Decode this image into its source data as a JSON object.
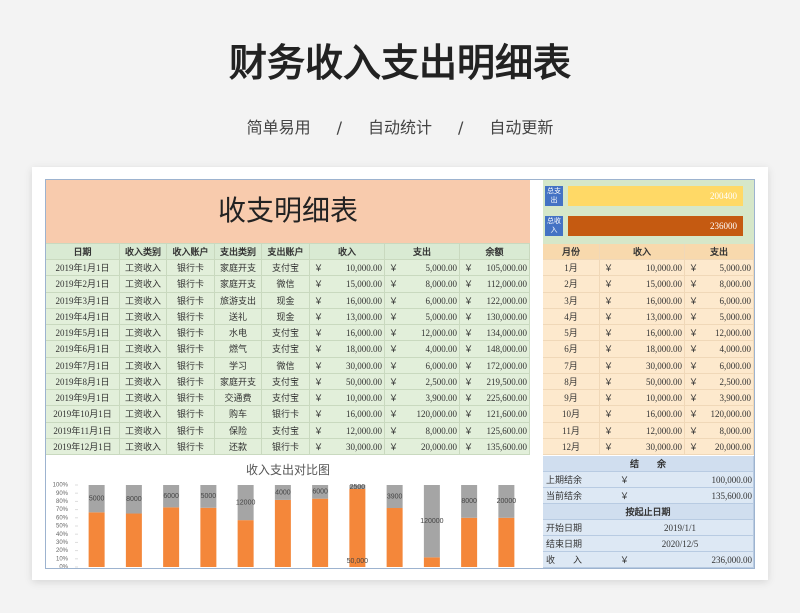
{
  "header": {
    "title": "财务收入支出明细表",
    "features": [
      "简单易用",
      "自动统计",
      "自动更新"
    ],
    "separator": "/"
  },
  "sheet": {
    "title": "收支明细表",
    "currency": "￥",
    "columns": [
      "日期",
      "收入类别",
      "收入账户",
      "支出类别",
      "支出账户",
      "收入",
      "支出",
      "余额"
    ],
    "rows": [
      [
        "2019年1月1日",
        "工资收入",
        "银行卡",
        "家庭开支",
        "支付宝",
        "10,000.00",
        "5,000.00",
        "105,000.00"
      ],
      [
        "2019年2月1日",
        "工资收入",
        "银行卡",
        "家庭开支",
        "微信",
        "15,000.00",
        "8,000.00",
        "112,000.00"
      ],
      [
        "2019年3月1日",
        "工资收入",
        "银行卡",
        "旅游支出",
        "现金",
        "16,000.00",
        "6,000.00",
        "122,000.00"
      ],
      [
        "2019年4月1日",
        "工资收入",
        "银行卡",
        "送礼",
        "现金",
        "13,000.00",
        "5,000.00",
        "130,000.00"
      ],
      [
        "2019年5月1日",
        "工资收入",
        "银行卡",
        "水电",
        "支付宝",
        "16,000.00",
        "12,000.00",
        "134,000.00"
      ],
      [
        "2019年6月1日",
        "工资收入",
        "银行卡",
        "燃气",
        "支付宝",
        "18,000.00",
        "4,000.00",
        "148,000.00"
      ],
      [
        "2019年7月1日",
        "工资收入",
        "银行卡",
        "学习",
        "微信",
        "30,000.00",
        "6,000.00",
        "172,000.00"
      ],
      [
        "2019年8月1日",
        "工资收入",
        "银行卡",
        "家庭开支",
        "支付宝",
        "50,000.00",
        "2,500.00",
        "219,500.00"
      ],
      [
        "2019年9月1日",
        "工资收入",
        "银行卡",
        "交通费",
        "支付宝",
        "10,000.00",
        "3,900.00",
        "225,600.00"
      ],
      [
        "2019年10月1日",
        "工资收入",
        "银行卡",
        "购车",
        "银行卡",
        "16,000.00",
        "120,000.00",
        "121,600.00"
      ],
      [
        "2019年11月1日",
        "工资收入",
        "银行卡",
        "保险",
        "支付宝",
        "12,000.00",
        "8,000.00",
        "125,600.00"
      ],
      [
        "2019年12月1日",
        "工资收入",
        "银行卡",
        "还款",
        "银行卡",
        "30,000.00",
        "20,000.00",
        "135,600.00"
      ]
    ]
  },
  "chart_data": {
    "type": "bar",
    "stacking": "percent",
    "title": "收入支出对比图",
    "categories": [
      null,
      null,
      null,
      null,
      null,
      null,
      null,
      null,
      null,
      null,
      null,
      null
    ],
    "series": [
      {
        "color": "#f4873a",
        "values": [
          10000,
          15000,
          16000,
          13000,
          16000,
          18000,
          30000,
          50000,
          10000,
          16000,
          12000,
          30000
        ],
        "value_labels": [
          null,
          null,
          null,
          null,
          null,
          null,
          null,
          "50,000",
          null,
          null,
          null,
          null
        ]
      },
      {
        "color": "#a5a5a5",
        "values": [
          5000,
          8000,
          6000,
          5000,
          12000,
          4000,
          6000,
          2500,
          3900,
          120000,
          8000,
          20000
        ]
      }
    ],
    "ylim": [
      0,
      100
    ],
    "yticks": [
      {
        "value": 0,
        "label": "0%"
      },
      {
        "value": 10,
        "label": "10%"
      },
      {
        "value": 20,
        "label": "20%"
      },
      {
        "value": 30,
        "label": "30%"
      },
      {
        "value": 40,
        "label": "40%"
      },
      {
        "value": 50,
        "label": "50%"
      },
      {
        "value": 60,
        "label": "60%"
      },
      {
        "value": 70,
        "label": "70%"
      },
      {
        "value": 80,
        "label": "80%"
      },
      {
        "value": 90,
        "label": "90%"
      },
      {
        "value": 100,
        "label": "100%"
      }
    ]
  },
  "summary": {
    "items": [
      {
        "label": "总支出",
        "value": 200400
      },
      {
        "label": "总收入",
        "value": 236000
      }
    ]
  },
  "monthly": {
    "columns": [
      "月份",
      "收入",
      "支出"
    ],
    "rows": [
      [
        "1月",
        "10,000.00",
        "5,000.00"
      ],
      [
        "2月",
        "15,000.00",
        "8,000.00"
      ],
      [
        "3月",
        "16,000.00",
        "6,000.00"
      ],
      [
        "4月",
        "13,000.00",
        "5,000.00"
      ],
      [
        "5月",
        "16,000.00",
        "12,000.00"
      ],
      [
        "6月",
        "18,000.00",
        "4,000.00"
      ],
      [
        "7月",
        "30,000.00",
        "6,000.00"
      ],
      [
        "8月",
        "50,000.00",
        "2,500.00"
      ],
      [
        "9月",
        "10,000.00",
        "3,900.00"
      ],
      [
        "10月",
        "16,000.00",
        "120,000.00"
      ],
      [
        "11月",
        "12,000.00",
        "8,000.00"
      ],
      [
        "12月",
        "30,000.00",
        "20,000.00"
      ]
    ]
  },
  "balance": {
    "title": "结　　余",
    "rows": [
      [
        "上期结余",
        "￥",
        "100,000.00"
      ],
      [
        "当前结余",
        "￥",
        "135,600.00"
      ]
    ]
  },
  "period": {
    "title": "按起止日期",
    "rows": [
      [
        "开始日期",
        "2019/1/1"
      ],
      [
        "结束日期",
        "2020/12/5"
      ],
      [
        "收　　入",
        "￥",
        "236,000.00"
      ]
    ]
  }
}
